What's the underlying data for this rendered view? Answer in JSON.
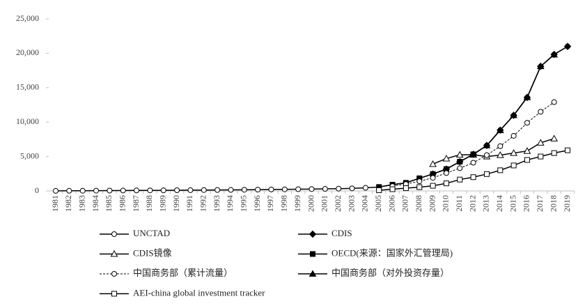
{
  "chart_data": {
    "type": "line",
    "categories": [
      "1981",
      "1982",
      "1983",
      "1984",
      "1985",
      "1986",
      "1987",
      "1988",
      "1989",
      "1990",
      "1991",
      "1992",
      "1993",
      "1994",
      "1995",
      "1996",
      "1997",
      "1998",
      "1999",
      "2000",
      "2001",
      "2002",
      "2003",
      "2004",
      "2005",
      "2006",
      "2007",
      "2008",
      "2009",
      "2010",
      "2011",
      "2012",
      "2013",
      "2014",
      "2015",
      "2016",
      "2017",
      "2018",
      "2019"
    ],
    "ylim": [
      0,
      25000
    ],
    "yticks": [
      0,
      {
        "value": 5000,
        "label": "5,000"
      },
      {
        "value": 10000,
        "label": "10,000"
      },
      {
        "value": 15000,
        "label": "15,000"
      },
      {
        "value": 20000,
        "label": "20,000"
      },
      {
        "value": 25000,
        "label": "25,000"
      }
    ],
    "series": [
      {
        "name": "UNCTAD",
        "color": "#000000",
        "marker": "circle",
        "filled": false,
        "dashed": false,
        "values": [
          10,
          20,
          30,
          40,
          50,
          60,
          70,
          80,
          90,
          100,
          110,
          130,
          140,
          150,
          170,
          190,
          210,
          230,
          250,
          270,
          300,
          330,
          370,
          450,
          572,
          906,
          1179,
          1839,
          2458,
          3172,
          4248,
          5319,
          6604,
          8826,
          10979,
          13574,
          18090,
          19823,
          20989
        ]
      },
      {
        "name": "CDIS",
        "color": "#000000",
        "marker": "diamond",
        "filled": true,
        "dashed": false,
        "values": [
          null,
          null,
          null,
          null,
          null,
          null,
          null,
          null,
          null,
          null,
          null,
          null,
          null,
          null,
          null,
          null,
          null,
          null,
          null,
          null,
          null,
          null,
          null,
          null,
          null,
          null,
          null,
          null,
          2458,
          3172,
          4248,
          5319,
          6604,
          8826,
          10979,
          13574,
          18090,
          19823,
          20989
        ]
      },
      {
        "name": "CDIS镜像",
        "color": "#000000",
        "marker": "triangle",
        "filled": false,
        "dashed": false,
        "values": [
          null,
          null,
          null,
          null,
          null,
          null,
          null,
          null,
          null,
          null,
          null,
          null,
          null,
          null,
          null,
          null,
          null,
          null,
          null,
          null,
          null,
          null,
          null,
          null,
          null,
          null,
          null,
          null,
          3900,
          4700,
          5250,
          5250,
          5000,
          5200,
          5500,
          5800,
          7000,
          7600,
          null
        ]
      },
      {
        "name": "OECD(来源：国家外汇管理局)",
        "color": "#000000",
        "marker": "square",
        "filled": true,
        "dashed": false,
        "values": [
          null,
          null,
          null,
          null,
          null,
          null,
          null,
          null,
          null,
          null,
          null,
          null,
          null,
          null,
          null,
          null,
          null,
          null,
          null,
          null,
          null,
          null,
          null,
          null,
          572,
          906,
          1179,
          1839,
          2458,
          3172,
          4248,
          5319,
          null,
          null,
          null,
          null,
          null,
          null,
          null
        ]
      },
      {
        "name": "中国商务部（累计流量）",
        "color": "#000000",
        "marker": "circle",
        "filled": false,
        "dashed": true,
        "values": [
          null,
          null,
          null,
          null,
          null,
          null,
          null,
          null,
          null,
          null,
          null,
          null,
          null,
          null,
          null,
          null,
          null,
          null,
          null,
          null,
          null,
          null,
          null,
          null,
          null,
          700,
          1000,
          1400,
          1900,
          2600,
          3300,
          4100,
          5200,
          6500,
          8000,
          9900,
          11500,
          12900,
          null
        ]
      },
      {
        "name": "中国商务部（对外投资存量）",
        "color": "#000000",
        "marker": "triangle",
        "filled": true,
        "dashed": false,
        "values": [
          null,
          null,
          null,
          null,
          null,
          null,
          null,
          null,
          null,
          null,
          null,
          null,
          null,
          null,
          null,
          null,
          null,
          null,
          null,
          null,
          null,
          null,
          null,
          null,
          null,
          null,
          null,
          null,
          null,
          null,
          null,
          5300,
          6600,
          8800,
          11000,
          13600,
          18100,
          19800,
          null
        ]
      },
      {
        "name": "AEI-china global investment tracker",
        "color": "#000000",
        "marker": "square",
        "filled": false,
        "dashed": false,
        "values": [
          null,
          null,
          null,
          null,
          null,
          null,
          null,
          null,
          null,
          null,
          null,
          null,
          null,
          null,
          null,
          null,
          null,
          null,
          null,
          null,
          null,
          null,
          null,
          null,
          100,
          250,
          400,
          550,
          750,
          1100,
          1650,
          2000,
          2450,
          3000,
          3700,
          4500,
          5000,
          5500,
          5900
        ]
      }
    ]
  }
}
